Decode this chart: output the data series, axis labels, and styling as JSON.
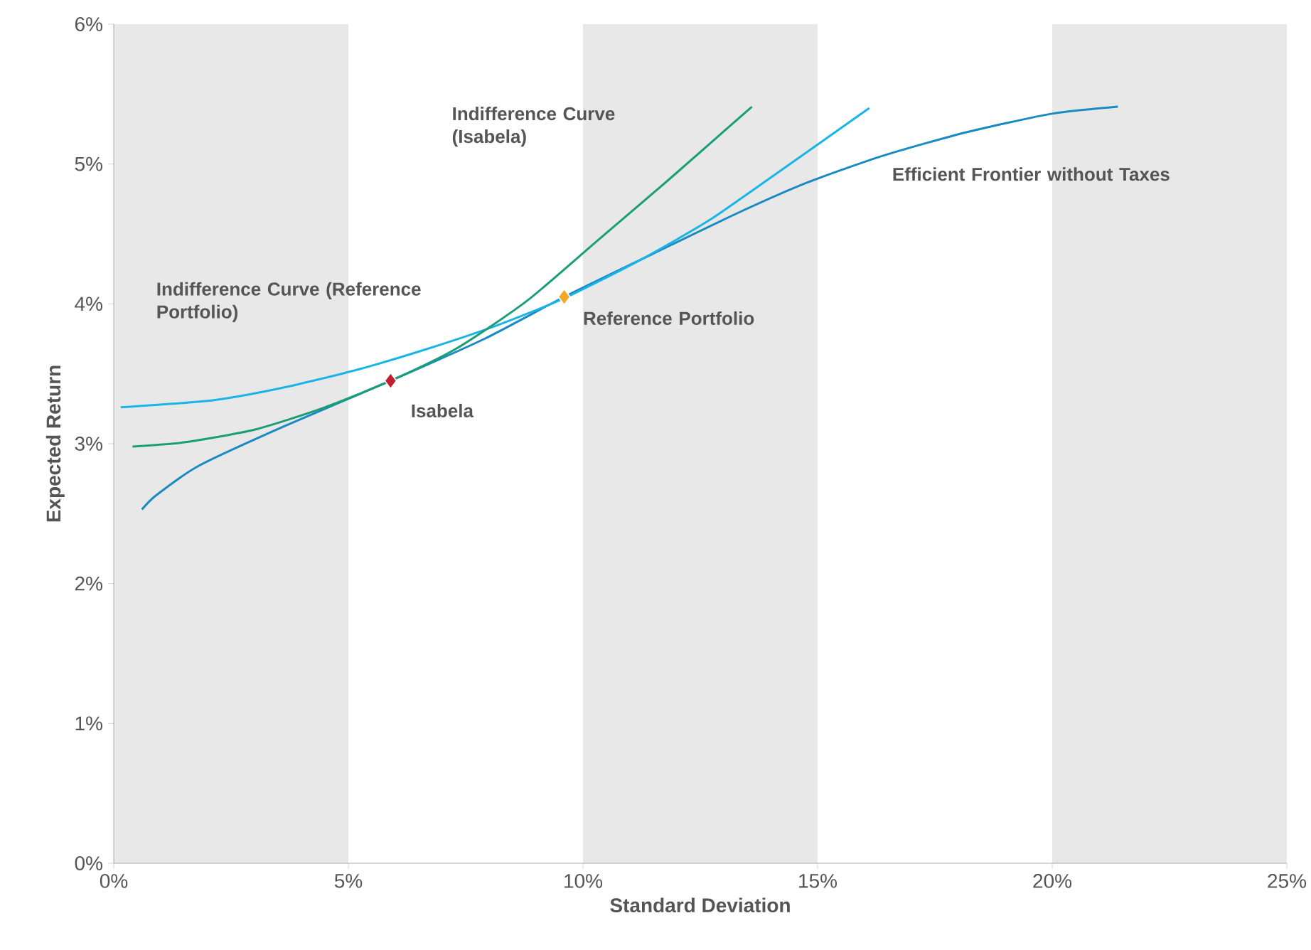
{
  "chart_data": {
    "type": "line",
    "xlabel": "Standard Deviation",
    "ylabel": "Expected Return",
    "xlim": [
      0,
      25
    ],
    "ylim": [
      0,
      6
    ],
    "xticks": [
      {
        "value": 0,
        "label": "0%"
      },
      {
        "value": 5,
        "label": "5%"
      },
      {
        "value": 10,
        "label": "10%"
      },
      {
        "value": 15,
        "label": "15%"
      },
      {
        "value": 20,
        "label": "20%"
      },
      {
        "value": 25,
        "label": "25%"
      }
    ],
    "yticks": [
      {
        "value": 0,
        "label": "0%"
      },
      {
        "value": 1,
        "label": "1%"
      },
      {
        "value": 2,
        "label": "2%"
      },
      {
        "value": 3,
        "label": "3%"
      },
      {
        "value": 4,
        "label": "4%"
      },
      {
        "value": 5,
        "label": "5%"
      },
      {
        "value": 6,
        "label": "6%"
      }
    ],
    "bands": [
      {
        "axis": "x",
        "from": 0,
        "to": 5,
        "color": "#e8e8e8"
      },
      {
        "axis": "x",
        "from": 10,
        "to": 15,
        "color": "#e8e8e8"
      },
      {
        "axis": "x",
        "from": 20,
        "to": 25,
        "color": "#e8e8e8"
      }
    ],
    "series": [
      {
        "color": "#1a8ac4",
        "x": [
          0.6,
          0.9,
          1.8,
          3.6,
          5.9,
          7.9,
          9.6,
          11.5,
          13.3,
          14.8,
          16.4,
          18.2,
          20.0,
          21.4
        ],
        "values": [
          2.53,
          2.63,
          2.84,
          3.12,
          3.45,
          3.75,
          4.05,
          4.36,
          4.65,
          4.87,
          5.06,
          5.23,
          5.36,
          5.41
        ]
      },
      {
        "color": "#19b5e6",
        "x": [
          0.15,
          2.1,
          3.6,
          5.2,
          6.7,
          8.2,
          9.6,
          11.2,
          12.7,
          14.2,
          16.1
        ],
        "values": [
          3.26,
          3.31,
          3.4,
          3.53,
          3.68,
          3.85,
          4.04,
          4.31,
          4.6,
          4.95,
          5.4
        ]
      },
      {
        "color": "#1a9e77",
        "x": [
          0.4,
          1.5,
          3.0,
          4.5,
          5.9,
          7.3,
          8.8,
          10.3,
          11.8,
          13.6
        ],
        "values": [
          2.98,
          3.01,
          3.1,
          3.26,
          3.45,
          3.68,
          4.02,
          4.45,
          4.88,
          5.41
        ]
      },
      {
        "type": "scatter",
        "marker": "diamond",
        "color": "#c0202f",
        "x": [
          5.9
        ],
        "values": [
          3.45
        ]
      },
      {
        "type": "scatter",
        "marker": "diamond",
        "color": "#f5a623",
        "x": [
          9.6
        ],
        "values": [
          4.05
        ]
      }
    ],
    "annotations": [
      "Indifference Curve (Isabela)",
      {
        "text": "Efficient Frontier without Taxes",
        "x": 16.4,
        "y": 5.06
      },
      "Indifference Curve (Reference Portfolio)",
      {
        "text": "Reference Portfolio",
        "x": 9.6,
        "y": 4.05
      },
      {
        "text": "Isabela",
        "x": 5.9,
        "y": 3.45
      }
    ]
  }
}
